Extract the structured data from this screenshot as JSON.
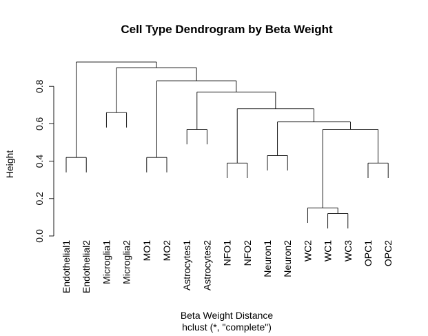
{
  "chart_data": {
    "type": "dendrogram",
    "title": "Cell Type Dendrogram by Beta Weight",
    "xlabel": "Beta Weight Distance",
    "sublabel": "hclust (*, \"complete\")",
    "ylabel": "Height",
    "ylim": [
      0.0,
      0.93
    ],
    "yticks": [
      "0.0",
      "0.2",
      "0.4",
      "0.6",
      "0.8"
    ],
    "yticks_values": [
      0.0,
      0.2,
      0.4,
      0.6,
      0.8
    ],
    "leaves": [
      "Endothelial1",
      "Endothelial2",
      "Microglia1",
      "Microglia2",
      "MO1",
      "MO2",
      "Astrocytes1",
      "Astrocytes2",
      "NFO1",
      "NFO2",
      "Neuron1",
      "Neuron2",
      "WC2",
      "WC1",
      "WC3",
      "OPC1",
      "OPC2"
    ],
    "merges": [
      {
        "left": "L:Endothelial1",
        "right": "L:Endothelial2",
        "height": 0.42
      },
      {
        "left": "L:Microglia1",
        "right": "L:Microglia2",
        "height": 0.66
      },
      {
        "left": "L:MO1",
        "right": "L:MO2",
        "height": 0.42
      },
      {
        "left": "L:Astrocytes1",
        "right": "L:Astrocytes2",
        "height": 0.57
      },
      {
        "left": "L:NFO1",
        "right": "L:NFO2",
        "height": 0.39
      },
      {
        "left": "L:Neuron1",
        "right": "L:Neuron2",
        "height": 0.43
      },
      {
        "left": "L:WC1",
        "right": "L:WC3",
        "height": 0.12
      },
      {
        "left": "L:WC2",
        "right": "M:6",
        "height": 0.15
      },
      {
        "left": "L:OPC1",
        "right": "L:OPC2",
        "height": 0.39
      },
      {
        "left": "M:7",
        "right": "M:8",
        "height": 0.57
      },
      {
        "left": "M:5",
        "right": "M:9",
        "height": 0.61
      },
      {
        "left": "M:4",
        "right": "M:10",
        "height": 0.68
      },
      {
        "left": "M:3",
        "right": "M:11",
        "height": 0.77
      },
      {
        "left": "M:2",
        "right": "M:12",
        "height": 0.83
      },
      {
        "left": "M:1",
        "right": "M:13",
        "height": 0.9
      },
      {
        "left": "M:0",
        "right": "M:14",
        "height": 0.93
      }
    ]
  }
}
